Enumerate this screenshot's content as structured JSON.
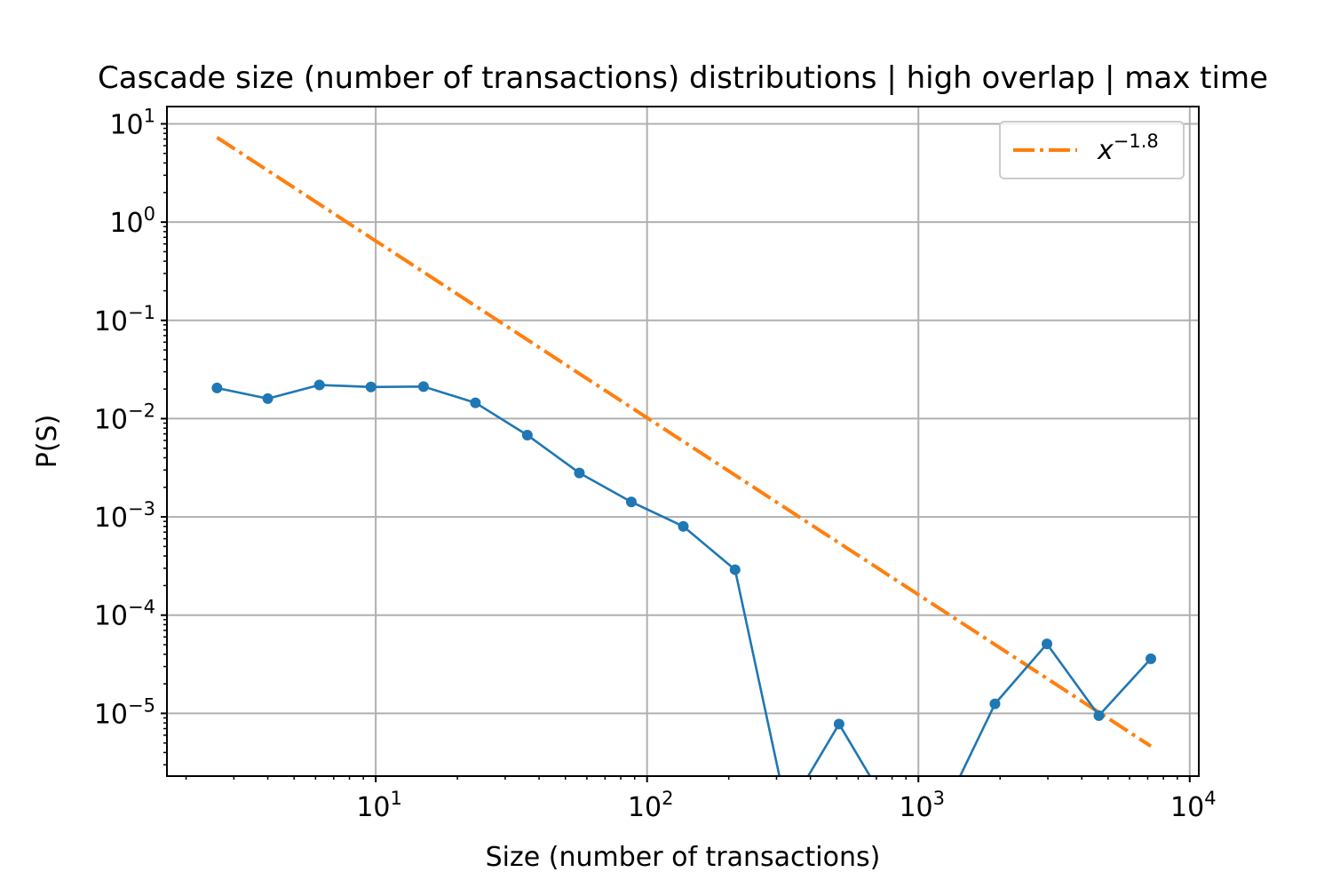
{
  "chart_data": {
    "type": "line",
    "title": "Cascade size (number of transactions) distributions | high overlap | max time",
    "xlabel": "Size (number of transactions)",
    "ylabel": "P(S)",
    "xscale": "log",
    "yscale": "log",
    "xlim": [
      1.7,
      10800
    ],
    "ylim": [
      2.3e-06,
      15
    ],
    "grid": true,
    "legend_position": "top-right",
    "x_ticks": [
      {
        "value": 10,
        "base": "10",
        "exp": "1"
      },
      {
        "value": 100,
        "base": "10",
        "exp": "2"
      },
      {
        "value": 1000,
        "base": "10",
        "exp": "3"
      },
      {
        "value": 10000,
        "base": "10",
        "exp": "4"
      }
    ],
    "y_ticks": [
      {
        "value": 10,
        "base": "10",
        "exp": "1"
      },
      {
        "value": 1,
        "base": "10",
        "exp": "0"
      },
      {
        "value": 0.1,
        "base": "10",
        "exp": "−1"
      },
      {
        "value": 0.01,
        "base": "10",
        "exp": "−2"
      },
      {
        "value": 0.001,
        "base": "10",
        "exp": "−3"
      },
      {
        "value": 0.0001,
        "base": "10",
        "exp": "−4"
      },
      {
        "value": 1e-05,
        "base": "10",
        "exp": "−5"
      }
    ],
    "series": [
      {
        "color": "#1f77b4",
        "style": "solid-with-markers",
        "points": [
          {
            "x": 2.6,
            "y": 0.0205
          },
          {
            "x": 4.0,
            "y": 0.016
          },
          {
            "x": 6.2,
            "y": 0.022
          },
          {
            "x": 9.6,
            "y": 0.021
          },
          {
            "x": 15.0,
            "y": 0.0212
          },
          {
            "x": 23.3,
            "y": 0.0145
          },
          {
            "x": 36.2,
            "y": 0.0068
          },
          {
            "x": 56.3,
            "y": 0.0028
          },
          {
            "x": 87.5,
            "y": 0.00142
          },
          {
            "x": 136,
            "y": 0.0008
          },
          {
            "x": 211,
            "y": 0.00029
          },
          {
            "x": 328,
            "y": 0
          },
          {
            "x": 510,
            "y": 7.8e-06
          },
          {
            "x": 793,
            "y": 0
          },
          {
            "x": 1232,
            "y": 0
          },
          {
            "x": 1915,
            "y": 1.25e-05
          },
          {
            "x": 2977,
            "y": 5.1e-05
          },
          {
            "x": 4626,
            "y": 9.5e-06
          },
          {
            "x": 7190,
            "y": 3.6e-05
          }
        ]
      },
      {
        "name": "x^{−1.8}",
        "legend_base": "x",
        "legend_exp": "−1.8",
        "color": "#ff7f0e",
        "style": "dashdot",
        "exponent": -1.8,
        "coefficient": 40.6,
        "x_range": [
          2.6,
          7190
        ]
      }
    ]
  }
}
